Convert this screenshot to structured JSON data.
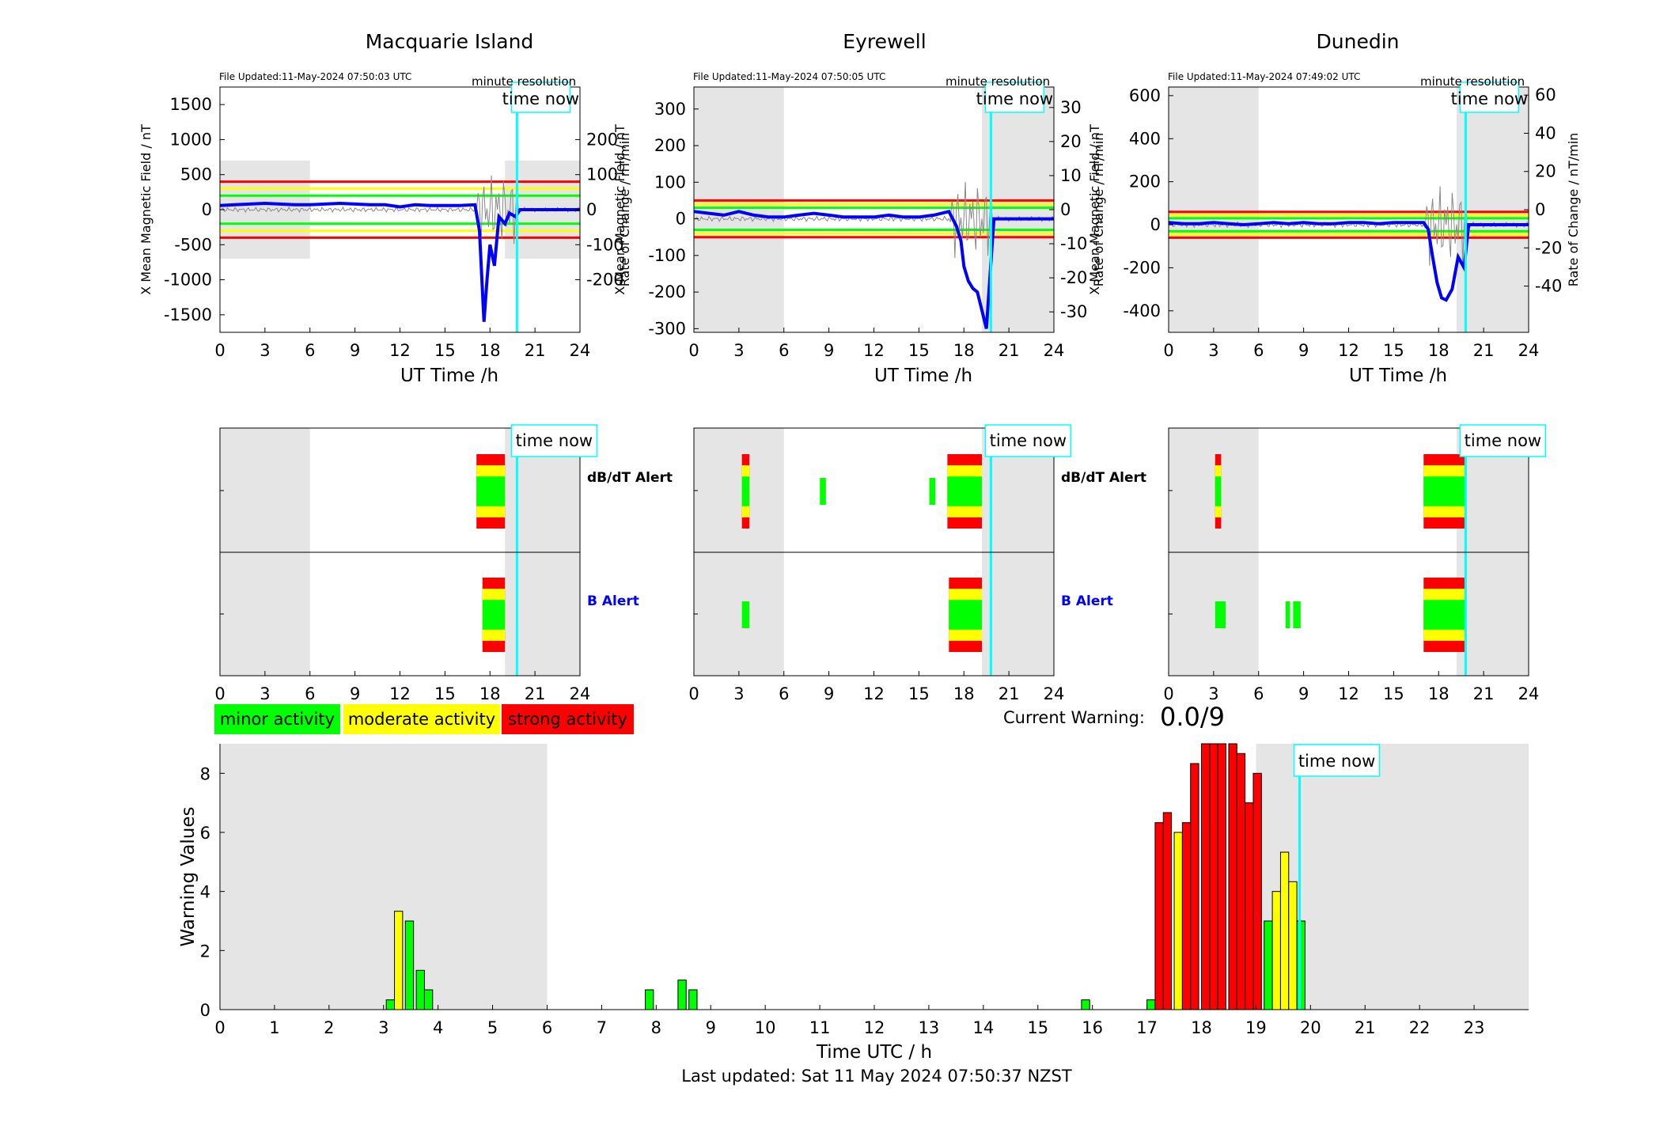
{
  "stations": [
    {
      "name": "Macquarie Island",
      "file_updated": "File Updated:11-May-2024 07:50:03 UTC",
      "resolution": "minute resolution",
      "left_ticks": [
        "1500",
        "1000",
        "500",
        "0",
        "-500",
        "-1000",
        "-1500"
      ],
      "right_ticks": [
        "200",
        "100",
        "0",
        "-100",
        "-200"
      ],
      "left_label": "X Mean Magnetic Field / nT",
      "right_label": "Rate of Change / nT/min"
    },
    {
      "name": "Eyrewell",
      "file_updated": "File Updated:11-May-2024 07:50:05 UTC",
      "resolution": "minute resolution",
      "left_ticks": [
        "300",
        "200",
        "100",
        "0",
        "-100",
        "-200",
        "-300"
      ],
      "right_ticks": [
        "30",
        "20",
        "10",
        "0",
        "-10",
        "-20",
        "-30"
      ],
      "left_label": "X Mean Magnetic Field / nT",
      "right_label": "Rate of Change / nT/min"
    },
    {
      "name": "Dunedin",
      "file_updated": "File Updated:11-May-2024 07:49:02 UTC",
      "resolution": "minute resolution",
      "left_ticks": [
        "600",
        "400",
        "200",
        "0",
        "-200",
        "-400"
      ],
      "right_ticks": [
        "60",
        "40",
        "20",
        "0",
        "-20",
        "-40"
      ],
      "left_label": "X Mean Magnetic Field / nT",
      "right_label": "Rate of Change / nT/min"
    }
  ],
  "top_xticks": [
    "0",
    "3",
    "6",
    "9",
    "12",
    "15",
    "18",
    "21",
    "24"
  ],
  "top_xlabel": "UT Time /h",
  "time_now_label": "time now",
  "alert_labels": {
    "dbdt": "dB/dT Alert",
    "b": "B Alert"
  },
  "legend": {
    "minor": "minor activity",
    "moderate": "moderate activity",
    "strong": "strong activity"
  },
  "current_warning": {
    "label": "Current Warning:",
    "value": "0.0/9"
  },
  "footer": "Last updated: Sat 11 May 2024 07:50:37 NZST",
  "colors": {
    "minor": "#00ff00",
    "moderate": "#ffff00",
    "strong": "#ff0000",
    "now": "#00ffff",
    "field": "#0000ff",
    "shade": "#e5e5e5"
  },
  "chart_data": [
    {
      "type": "line",
      "title": "Macquarie Island",
      "xlabel": "UT Time /h",
      "ylabel": "X Mean Magnetic Field / nT",
      "xlim": [
        0,
        24
      ],
      "ylim": [
        -1750,
        1750
      ],
      "time_now": 19.8,
      "thresholds": {
        "green": 200,
        "yellow": 300,
        "red": 400
      },
      "series": [
        {
          "x": [
            0,
            1,
            2,
            3,
            4,
            5,
            6,
            7,
            8,
            9,
            10,
            11,
            12,
            13,
            14,
            15,
            16,
            17,
            17.3,
            17.6,
            17.8,
            18,
            18.3,
            18.6,
            19,
            19.3,
            19.7,
            20,
            21,
            22,
            23,
            24
          ],
          "y": [
            60,
            70,
            80,
            90,
            80,
            70,
            70,
            80,
            90,
            80,
            70,
            70,
            40,
            70,
            60,
            60,
            60,
            70,
            -300,
            -1600,
            -1000,
            -500,
            -800,
            -100,
            -200,
            -50,
            -100,
            0,
            0,
            0,
            0,
            0
          ]
        }
      ]
    },
    {
      "type": "line",
      "title": "Eyrewell",
      "xlabel": "UT Time /h",
      "ylabel": "X Mean Magnetic Field / nT",
      "xlim": [
        0,
        24
      ],
      "ylim": [
        -310,
        360
      ],
      "time_now": 19.8,
      "thresholds": {
        "green": 30,
        "yellow": 40,
        "red": 50
      },
      "series": [
        {
          "x": [
            0,
            1,
            2,
            3,
            4,
            5,
            6,
            7,
            8,
            9,
            10,
            11,
            12,
            13,
            14,
            15,
            16,
            17,
            17.5,
            17.8,
            18,
            18.3,
            18.6,
            18.9,
            19.2,
            19.5,
            20,
            21,
            22,
            23,
            24
          ],
          "y": [
            20,
            15,
            10,
            20,
            10,
            5,
            5,
            10,
            15,
            10,
            5,
            5,
            5,
            10,
            5,
            5,
            10,
            20,
            -20,
            -60,
            -130,
            -170,
            -190,
            -200,
            -250,
            -300,
            0,
            0,
            0,
            0,
            0
          ]
        }
      ]
    },
    {
      "type": "line",
      "title": "Dunedin",
      "xlabel": "UT Time /h",
      "ylabel": "X Mean Magnetic Field / nT",
      "xlim": [
        0,
        24
      ],
      "ylim": [
        -500,
        640
      ],
      "time_now": 19.8,
      "thresholds": {
        "green": 30,
        "yellow": 45,
        "red": 60
      },
      "series": [
        {
          "x": [
            0,
            1,
            2,
            3,
            4,
            5,
            6,
            7,
            8,
            9,
            10,
            11,
            12,
            13,
            14,
            15,
            16,
            17,
            17.3,
            17.6,
            17.9,
            18.2,
            18.5,
            18.9,
            19.3,
            19.7,
            20,
            21,
            22,
            23,
            24
          ],
          "y": [
            10,
            5,
            5,
            10,
            5,
            0,
            5,
            10,
            5,
            10,
            5,
            5,
            10,
            10,
            5,
            10,
            10,
            10,
            -20,
            -150,
            -270,
            -340,
            -350,
            -300,
            -150,
            -200,
            0,
            0,
            0,
            0,
            0
          ]
        }
      ]
    },
    {
      "type": "bar",
      "xlabel": "Time UTC / h",
      "ylabel": "Warning Values",
      "xlim": [
        0,
        24
      ],
      "ylim": [
        0,
        9
      ],
      "time_now": 19.8,
      "bars": [
        {
          "x": 3.05,
          "value": 0.33,
          "level": "minor"
        },
        {
          "x": 3.2,
          "value": 3.33,
          "level": "moderate"
        },
        {
          "x": 3.4,
          "value": 3.0,
          "level": "minor"
        },
        {
          "x": 3.6,
          "value": 1.33,
          "level": "minor"
        },
        {
          "x": 3.75,
          "value": 0.67,
          "level": "minor"
        },
        {
          "x": 7.8,
          "value": 0.67,
          "level": "minor"
        },
        {
          "x": 8.4,
          "value": 1.0,
          "level": "minor"
        },
        {
          "x": 8.6,
          "value": 0.67,
          "level": "minor"
        },
        {
          "x": 15.8,
          "value": 0.33,
          "level": "minor"
        },
        {
          "x": 17.0,
          "value": 0.33,
          "level": "minor"
        },
        {
          "x": 17.15,
          "value": 6.33,
          "level": "strong"
        },
        {
          "x": 17.3,
          "value": 6.67,
          "level": "strong"
        },
        {
          "x": 17.5,
          "value": 6.0,
          "level": "moderate"
        },
        {
          "x": 17.65,
          "value": 6.33,
          "level": "strong"
        },
        {
          "x": 17.8,
          "value": 8.33,
          "level": "strong"
        },
        {
          "x": 18.0,
          "value": 9.0,
          "level": "strong"
        },
        {
          "x": 18.15,
          "value": 9.0,
          "level": "strong"
        },
        {
          "x": 18.3,
          "value": 9.0,
          "level": "strong"
        },
        {
          "x": 18.5,
          "value": 9.0,
          "level": "strong"
        },
        {
          "x": 18.65,
          "value": 8.67,
          "level": "strong"
        },
        {
          "x": 18.8,
          "value": 7.0,
          "level": "strong"
        },
        {
          "x": 18.95,
          "value": 8.0,
          "level": "strong"
        },
        {
          "x": 19.15,
          "value": 3.0,
          "level": "minor"
        },
        {
          "x": 19.3,
          "value": 4.0,
          "level": "moderate"
        },
        {
          "x": 19.45,
          "value": 5.33,
          "level": "moderate"
        },
        {
          "x": 19.6,
          "value": 4.33,
          "level": "moderate"
        },
        {
          "x": 19.75,
          "value": 3.0,
          "level": "minor"
        }
      ]
    }
  ]
}
